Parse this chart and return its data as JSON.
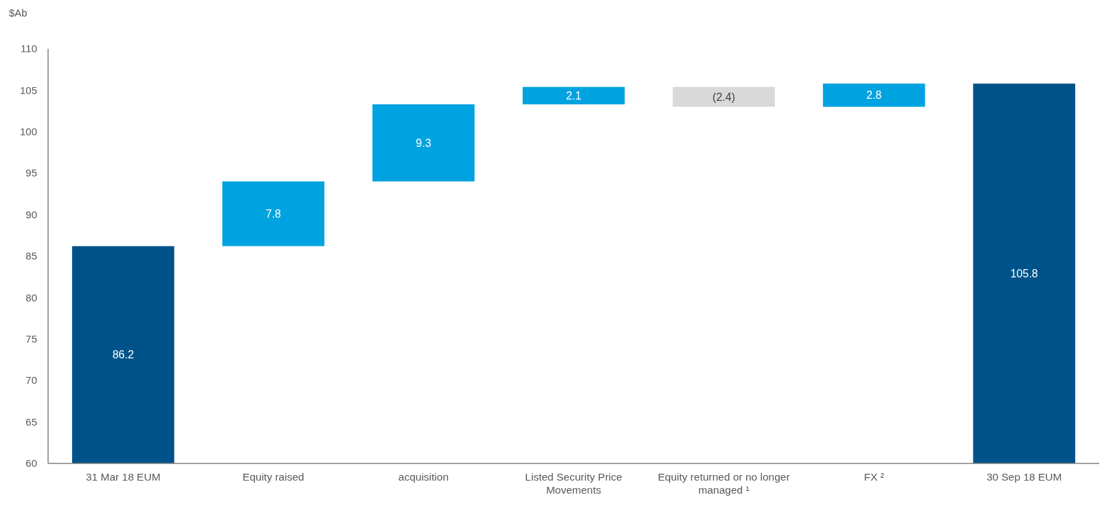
{
  "chart_data": {
    "type": "bar",
    "ylabel": "$Ab",
    "categories": [
      "31 Mar 18 EUM",
      "Equity raised",
      "acquisition",
      "Listed Security Price Movements",
      "Equity returned or no longer managed ¹",
      "FX ²",
      "30 Sep 18 EUM"
    ],
    "values": [
      86.2,
      7.8,
      9.3,
      2.1,
      -2.4,
      2.8,
      105.8
    ],
    "base": [
      null,
      86.2,
      94.0,
      103.3,
      105.4,
      103.0,
      null
    ],
    "colors": [
      "#00538a",
      "#00a3e0",
      "#00a3e0",
      "#00a3e0",
      "#d9d9d9",
      "#00a3e0",
      "#00538a"
    ],
    "value_labels": [
      "86.2",
      "7.8",
      "9.3",
      "2.1",
      "(2.4)",
      "2.8",
      "105.8"
    ],
    "ylim": [
      60,
      110
    ],
    "yticks": [
      60,
      65,
      70,
      75,
      80,
      85,
      90,
      95,
      100,
      105,
      110
    ]
  }
}
